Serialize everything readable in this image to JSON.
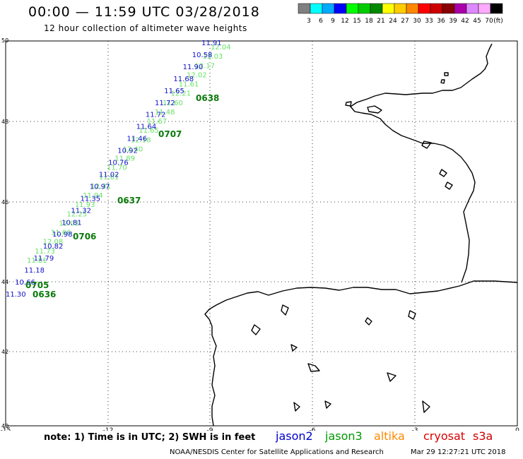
{
  "title": "00:00 — 11:59 UTC 03/28/2018",
  "subtitle": "12 hour collection of altimeter wave heights",
  "colorbar": {
    "bins": [
      {
        "label": "3",
        "color": "#808080"
      },
      {
        "label": "6",
        "color": "#00ffff"
      },
      {
        "label": "9",
        "color": "#00aaff"
      },
      {
        "label": "12",
        "color": "#0000ff"
      },
      {
        "label": "15",
        "color": "#00ff00"
      },
      {
        "label": "18",
        "color": "#00cc00"
      },
      {
        "label": "21",
        "color": "#008800"
      },
      {
        "label": "24",
        "color": "#ffff00"
      },
      {
        "label": "27",
        "color": "#ffcc00"
      },
      {
        "label": "30",
        "color": "#ff8800"
      },
      {
        "label": "33",
        "color": "#ff0000"
      },
      {
        "label": "36",
        "color": "#cc0000"
      },
      {
        "label": "39",
        "color": "#880000"
      },
      {
        "label": "42",
        "color": "#aa00aa"
      },
      {
        "label": "45",
        "color": "#dd88ff"
      },
      {
        "label": "70",
        "color": "#ffaaff"
      },
      {
        "label": "",
        "color": "#000000"
      }
    ],
    "unit": "(ft)"
  },
  "map": {
    "lat_labels": [
      "50",
      "48",
      "46",
      "44",
      "42",
      "40"
    ],
    "lon_labels": [
      "-15",
      "-12",
      "-9",
      "-6",
      "-3",
      "0"
    ],
    "time_labels": [
      "0638",
      "0707",
      "0637",
      "0706",
      "0705",
      "0636"
    ],
    "jason2_values": [
      "11.91",
      "10.58",
      "11.90",
      "11.68",
      "11.65",
      "11.72",
      "11.72",
      "11.64",
      "11.46",
      "10.92",
      "10.76",
      "11.02",
      "10.97",
      "11.35",
      "11.32",
      "10.81",
      "10.98",
      "10.82",
      "11.79",
      "11.18",
      "10.66",
      "11.30"
    ],
    "jason3_values": [
      "12.04",
      "12.03",
      "12.17",
      "12.02",
      "11.61",
      "12.21",
      "11.60",
      "11.48",
      "11.67",
      "11.65",
      "12.18",
      "12.40",
      "11.89",
      "11.70",
      "11.61",
      "12.31",
      "11.94",
      "11.93",
      "12.25",
      "12.03",
      "11.66",
      "12.08",
      "11.73",
      "11.81"
    ]
  },
  "note": "note: 1) Time is in UTC; 2) SWH is in feet",
  "satellites": [
    {
      "name": "jason2",
      "color": "#0000cc"
    },
    {
      "name": "jason3",
      "color": "#009900"
    },
    {
      "name": "altika",
      "color": "#ff8800"
    },
    {
      "name": "cryosat",
      "color": "#dd0000"
    },
    {
      "name": "s3a",
      "color": "#cc0000"
    }
  ],
  "credit": "NOAA/NESDIS Center for Satellite Applications and Research",
  "timestamp": "Mar 29 12:27:21 UTC 2018"
}
